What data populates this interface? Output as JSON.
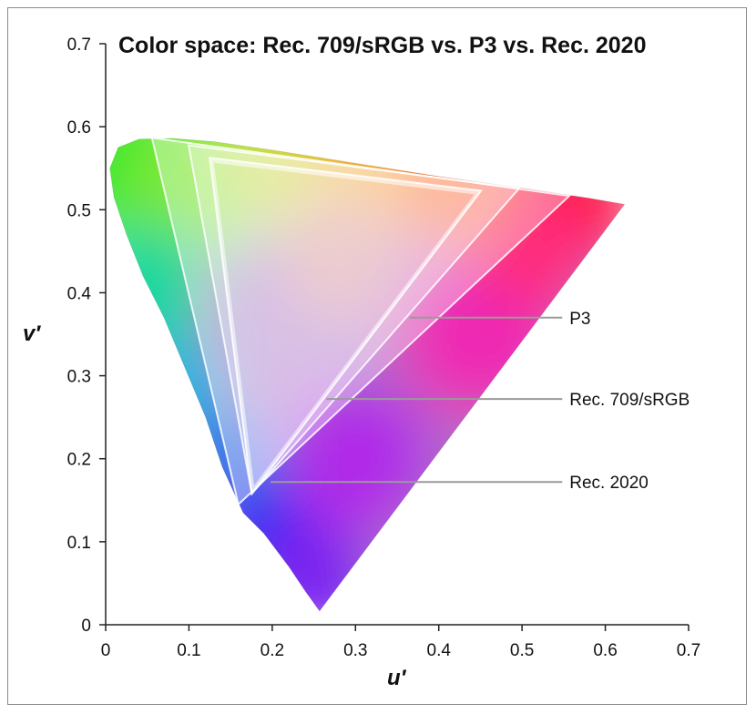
{
  "chart_data": {
    "type": "diagram",
    "title": "Color space: Rec. 709/sRGB vs. P3 vs. Rec. 2020",
    "xlabel": "u′",
    "ylabel": "v′",
    "xlim": [
      0,
      0.7
    ],
    "ylim": [
      0,
      0.7
    ],
    "x_ticks": [
      "0",
      "0.1",
      "0.2",
      "0.3",
      "0.4",
      "0.5",
      "0.6",
      "0.7"
    ],
    "y_ticks": [
      "0",
      "0.1",
      "0.2",
      "0.3",
      "0.4",
      "0.5",
      "0.6",
      "0.7"
    ],
    "spectral_locus": [
      [
        0.2568,
        0.0165
      ],
      [
        0.24,
        0.04
      ],
      [
        0.22,
        0.07
      ],
      [
        0.19,
        0.11
      ],
      [
        0.165,
        0.135
      ],
      [
        0.14,
        0.19
      ],
      [
        0.12,
        0.25
      ],
      [
        0.095,
        0.31
      ],
      [
        0.07,
        0.37
      ],
      [
        0.045,
        0.42
      ],
      [
        0.025,
        0.47
      ],
      [
        0.01,
        0.515
      ],
      [
        0.005,
        0.55
      ],
      [
        0.015,
        0.575
      ],
      [
        0.04,
        0.585
      ],
      [
        0.08,
        0.586
      ],
      [
        0.13,
        0.582
      ],
      [
        0.2,
        0.572
      ],
      [
        0.3,
        0.556
      ],
      [
        0.4,
        0.54
      ],
      [
        0.5,
        0.526
      ],
      [
        0.58,
        0.514
      ],
      [
        0.6231,
        0.5065
      ]
    ],
    "gamuts": [
      {
        "name": "Rec. 2020",
        "primaries": {
          "red": [
            0.5567,
            0.5167
          ],
          "green": [
            0.0556,
            0.5867
          ],
          "blue": [
            0.1594,
            0.1451
          ]
        }
      },
      {
        "name": "P3",
        "primaries": {
          "red": [
            0.4966,
            0.5258
          ],
          "green": [
            0.0996,
            0.5777
          ],
          "blue": [
            0.1754,
            0.1579
          ]
        }
      },
      {
        "name": "Rec. 709/sRGB",
        "primaries": {
          "red": [
            0.4507,
            0.5229
          ],
          "green": [
            0.125,
            0.5625
          ],
          "blue": [
            0.1754,
            0.1579
          ]
        }
      }
    ],
    "callouts": [
      {
        "label": "P3",
        "target": [
          0.365,
          0.37
        ]
      },
      {
        "label": "Rec. 709/sRGB",
        "target": [
          0.265,
          0.272
        ]
      },
      {
        "label": "Rec. 2020",
        "target": [
          0.198,
          0.172
        ]
      }
    ]
  }
}
